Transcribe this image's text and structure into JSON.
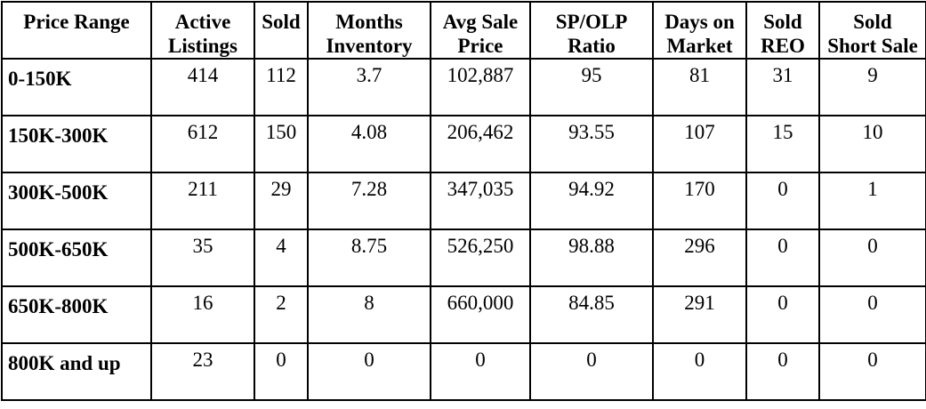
{
  "headers": [
    [
      "Price Range"
    ],
    [
      "Active",
      "Listings"
    ],
    [
      "Sold"
    ],
    [
      "Months",
      "Inventory"
    ],
    [
      "Avg Sale",
      "Price"
    ],
    [
      "SP/OLP",
      "Ratio"
    ],
    [
      "Days on",
      "Market"
    ],
    [
      "Sold",
      "REO"
    ],
    [
      "Sold",
      "Short Sale"
    ]
  ],
  "rows": [
    [
      "0-150K",
      "414",
      "112",
      "3.7",
      "102,887",
      "95",
      "81",
      "31",
      "9"
    ],
    [
      "150K-300K",
      "612",
      "150",
      "4.08",
      "206,462",
      "93.55",
      "107",
      "15",
      "10"
    ],
    [
      "300K-500K",
      "211",
      "29",
      "7.28",
      "347,035",
      "94.92",
      "170",
      "0",
      "1"
    ],
    [
      "500K-650K",
      "35",
      "4",
      "8.75",
      "526,250",
      "98.88",
      "296",
      "0",
      "0"
    ],
    [
      "650K-800K",
      "16",
      "2",
      "8",
      "660,000",
      "84.85",
      "291",
      "0",
      "0"
    ],
    [
      "800K and up",
      "23",
      "0",
      "0",
      "0",
      "0",
      "0",
      "0",
      "0"
    ]
  ]
}
